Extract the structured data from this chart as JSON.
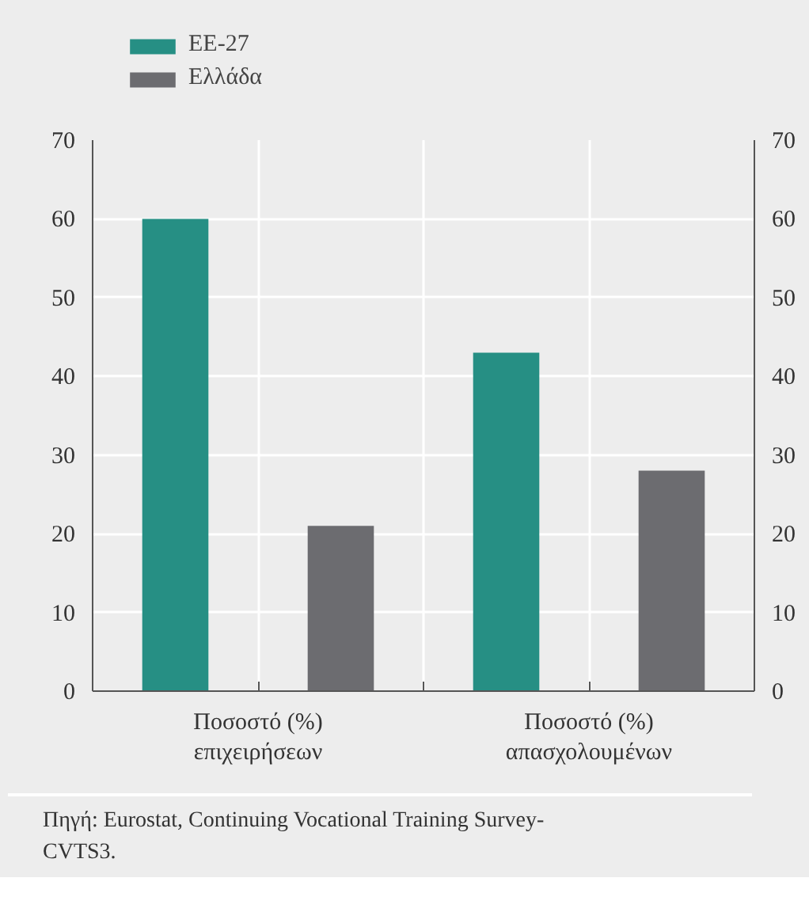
{
  "chart_data": {
    "type": "bar",
    "categories": [
      "Ποσοστό (%)\nεπιχειρήσεων",
      "Ποσοστό (%)\nαπασχολουμένων"
    ],
    "series": [
      {
        "name": "ΕΕ-27",
        "color": "#268f84",
        "values": [
          60,
          43
        ]
      },
      {
        "name": "Ελλάδα",
        "color": "#6c6c70",
        "values": [
          21,
          28
        ]
      }
    ],
    "ylim": [
      0,
      70
    ],
    "yticks": [
      0,
      10,
      20,
      30,
      40,
      50,
      60,
      70
    ],
    "y2lim": [
      0,
      70
    ],
    "y2ticks": [
      0,
      10,
      20,
      30,
      40,
      50,
      60,
      70
    ],
    "grid": true,
    "legend": "top left",
    "annotations": [
      "Πηγή: Eurostat, Continuing Vocational Training Survey-\nCVTS3."
    ]
  }
}
